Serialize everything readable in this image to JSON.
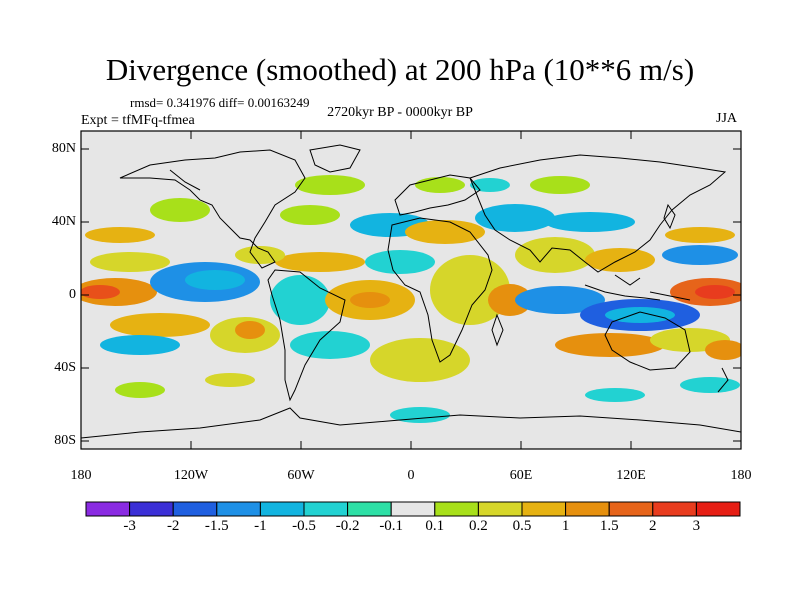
{
  "title": "Divergence (smoothed) at 200 hPa (10**6 m/s)",
  "stats": "rmsd= 0.341976 diff= 0.00163249",
  "period": "2720kyr BP - 0000kyr BP",
  "experiment": "Expt = tfMFq-tfmea",
  "season": "JJA",
  "axes": {
    "lat_labels": [
      "80N",
      "40N",
      "0",
      "40S",
      "80S"
    ],
    "lon_labels": [
      "180",
      "120W",
      "60W",
      "0",
      "60E",
      "120E",
      "180"
    ]
  },
  "colorbar": {
    "labels": [
      "-3",
      "-2",
      "-1.5",
      "-1",
      "-0.5",
      "-0.2",
      "-0.1",
      "0.1",
      "0.2",
      "0.5",
      "1",
      "1.5",
      "2",
      "3"
    ],
    "colors": [
      "#8a2be2",
      "#3b2fd6",
      "#1f5fe0",
      "#1e90e6",
      "#12b4e0",
      "#22d2d2",
      "#2ee0a6",
      "#e6e6e6",
      "#a8e01a",
      "#d6d62a",
      "#e6b212",
      "#e6900e",
      "#e6641a",
      "#e83c1e",
      "#e61e14"
    ]
  },
  "palette": {
    "background": "#e6e6e6",
    "coast": "#000000"
  }
}
